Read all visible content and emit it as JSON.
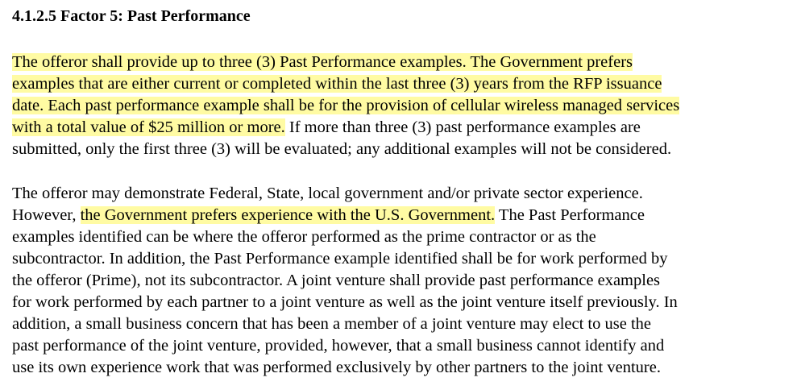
{
  "heading": "4.1.2.5 Factor 5: Past Performance",
  "highlight_color": "#fffba3",
  "paragraphs": [
    {
      "lines": [
        {
          "segments": [
            {
              "text": "The offeror shall provide up to three (3) Past Performance examples. The Government prefers",
              "highlight": true
            }
          ]
        },
        {
          "segments": [
            {
              "text": "examples that are either current or completed within the last three (3) years from the RFP issuance",
              "highlight": true
            }
          ]
        },
        {
          "segments": [
            {
              "text": "date. Each past performance example shall be for the provision of cellular wireless managed services",
              "highlight": true
            }
          ]
        },
        {
          "segments": [
            {
              "text": "with a total value of $25 million or more.",
              "highlight": true
            },
            {
              "text": " If more than three (3) past performance examples are",
              "highlight": false
            }
          ]
        },
        {
          "segments": [
            {
              "text": "submitted, only the first three (3) will be evaluated; any additional examples will not be considered.",
              "highlight": false
            }
          ]
        }
      ]
    },
    {
      "lines": [
        {
          "segments": [
            {
              "text": "The offeror may demonstrate Federal, State, local government and/or private sector experience.",
              "highlight": false
            }
          ]
        },
        {
          "segments": [
            {
              "text": "However, ",
              "highlight": false
            },
            {
              "text": "the Government prefers experience with the U.S. Government.",
              "highlight": true
            },
            {
              "text": " The Past Performance",
              "highlight": false
            }
          ]
        },
        {
          "segments": [
            {
              "text": "examples identified can be where the offeror performed as the prime contractor or as the",
              "highlight": false
            }
          ]
        },
        {
          "segments": [
            {
              "text": "subcontractor. In addition, the Past Performance example identified shall be for work performed by",
              "highlight": false
            }
          ]
        },
        {
          "segments": [
            {
              "text": "the offeror (Prime), not its subcontractor. A joint venture shall provide past performance examples",
              "highlight": false
            }
          ]
        },
        {
          "segments": [
            {
              "text": "for work performed by each partner to a joint venture as well as the joint venture itself previously. In",
              "highlight": false
            }
          ]
        },
        {
          "segments": [
            {
              "text": "addition, a small business concern that has been a member of a joint venture may elect to use the",
              "highlight": false
            }
          ]
        },
        {
          "segments": [
            {
              "text": "past performance of the joint venture, provided, however, that a small business cannot identify and",
              "highlight": false
            }
          ]
        },
        {
          "segments": [
            {
              "text": "use its own experience work that was performed exclusively by other partners to the joint venture.",
              "highlight": false
            }
          ]
        }
      ]
    }
  ]
}
